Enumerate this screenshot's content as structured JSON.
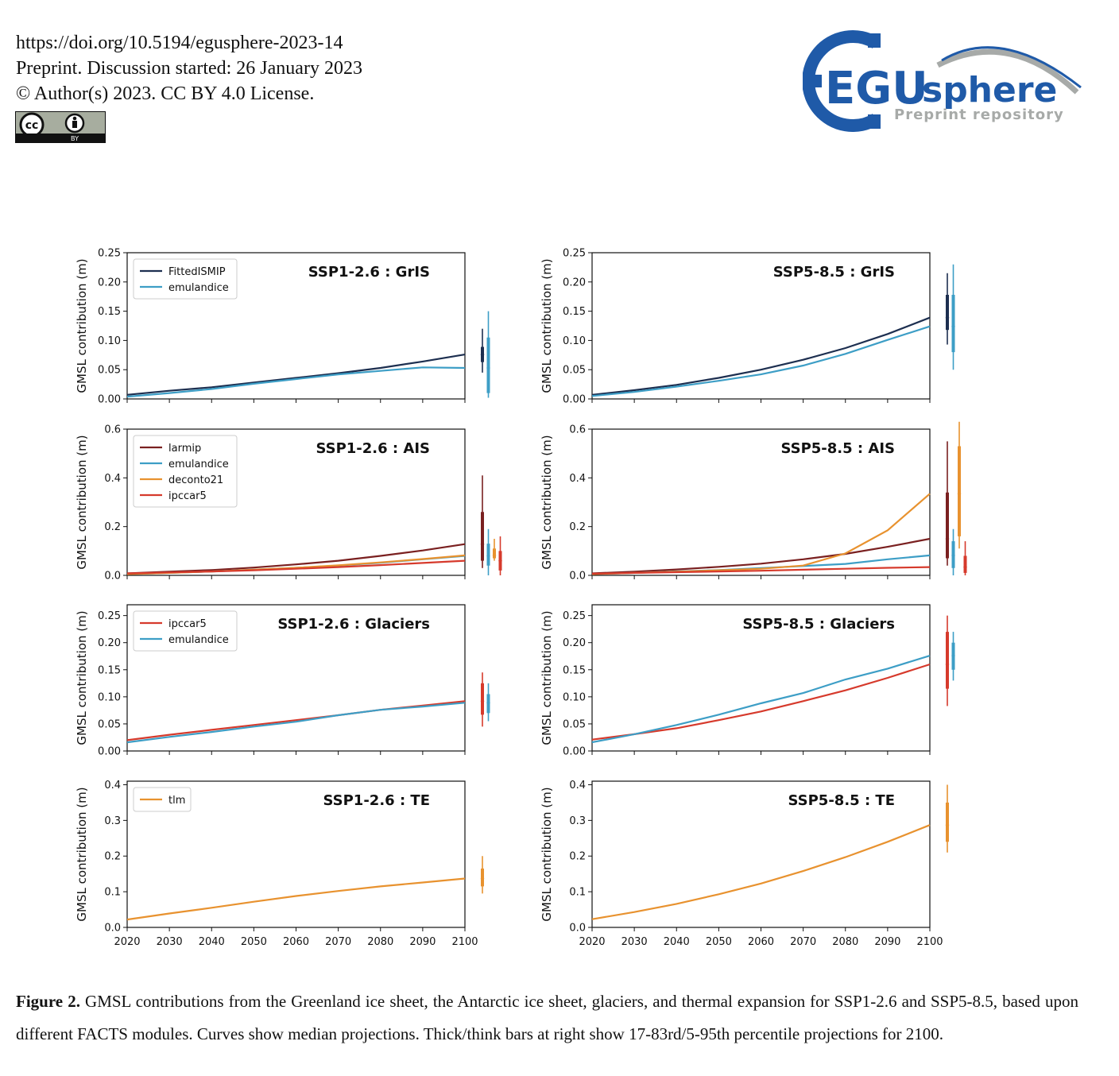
{
  "header": {
    "doi": "https://doi.org/10.5194/egusphere-2023-14",
    "preprint": "Preprint. Discussion started: 26 January 2023",
    "license": "© Author(s) 2023. CC BY 4.0 License.",
    "cc_badge": {
      "cc": "cc",
      "by": "BY"
    }
  },
  "logo": {
    "egu": "EGU",
    "sphere": "sphere",
    "sub": "Preprint repository",
    "colors": {
      "blue": "#1f5aa8",
      "gray": "#a7aaa8"
    }
  },
  "figure": {
    "ylabel": "GMSL contribution (m)",
    "x_ticks": [
      "2020",
      "2030",
      "2040",
      "2050",
      "2060",
      "2070",
      "2080",
      "2090",
      "2100"
    ]
  },
  "chart_data": [
    {
      "type": "line",
      "title": "SSP1-2.6 : GrIS",
      "ylim": [
        0,
        0.25
      ],
      "yticks": [
        "0.00",
        "0.05",
        "0.10",
        "0.15",
        "0.20",
        "0.25"
      ],
      "x": [
        2020,
        2030,
        2040,
        2050,
        2060,
        2070,
        2080,
        2090,
        2100
      ],
      "series": [
        {
          "name": "FittedISMIP",
          "color": "#1d2f50",
          "values": [
            0.007,
            0.014,
            0.02,
            0.028,
            0.036,
            0.044,
            0.053,
            0.064,
            0.076
          ],
          "p5": 0.045,
          "p17": 0.063,
          "p50": 0.076,
          "p83": 0.089,
          "p95": 0.12
        },
        {
          "name": "emulandice",
          "color": "#3d9ec6",
          "values": [
            0.004,
            0.01,
            0.017,
            0.026,
            0.034,
            0.042,
            0.048,
            0.054,
            0.053
          ],
          "p5": 0.002,
          "p17": 0.01,
          "p50": 0.053,
          "p83": 0.105,
          "p95": 0.15
        }
      ]
    },
    {
      "type": "line",
      "title": "SSP5-8.5 : GrIS",
      "ylim": [
        0,
        0.25
      ],
      "yticks": [
        "0.00",
        "0.05",
        "0.10",
        "0.15",
        "0.20",
        "0.25"
      ],
      "x": [
        2020,
        2030,
        2040,
        2050,
        2060,
        2070,
        2080,
        2090,
        2100
      ],
      "series": [
        {
          "name": "",
          "color": "#1d2f50",
          "values": [
            0.007,
            0.015,
            0.024,
            0.036,
            0.05,
            0.067,
            0.087,
            0.111,
            0.139
          ],
          "p5": 0.093,
          "p17": 0.118,
          "p50": 0.139,
          "p83": 0.178,
          "p95": 0.215
        },
        {
          "name": "",
          "color": "#3d9ec6",
          "values": [
            0.005,
            0.012,
            0.021,
            0.031,
            0.042,
            0.057,
            0.077,
            0.101,
            0.124
          ],
          "p5": 0.05,
          "p17": 0.08,
          "p50": 0.124,
          "p83": 0.178,
          "p95": 0.23
        }
      ]
    },
    {
      "type": "line",
      "title": "SSP1-2.6 : AIS",
      "ylim": [
        0,
        0.6
      ],
      "yticks": [
        "0.0",
        "0.2",
        "0.4",
        "0.6"
      ],
      "x": [
        2020,
        2030,
        2040,
        2050,
        2060,
        2070,
        2080,
        2090,
        2100
      ],
      "series": [
        {
          "name": "larmip",
          "color": "#7a2020",
          "values": [
            0.008,
            0.015,
            0.022,
            0.032,
            0.045,
            0.06,
            0.08,
            0.102,
            0.128
          ],
          "p5": 0.03,
          "p17": 0.06,
          "p50": 0.128,
          "p83": 0.26,
          "p95": 0.41
        },
        {
          "name": "emulandice",
          "color": "#3d9ec6",
          "values": [
            0.005,
            0.01,
            0.016,
            0.023,
            0.031,
            0.04,
            0.052,
            0.066,
            0.08
          ],
          "p5": 0.0,
          "p17": 0.04,
          "p50": 0.08,
          "p83": 0.13,
          "p95": 0.19
        },
        {
          "name": "deconto21",
          "color": "#e8922f",
          "values": [
            0.005,
            0.01,
            0.016,
            0.023,
            0.031,
            0.041,
            0.053,
            0.067,
            0.082
          ],
          "p5": 0.06,
          "p17": 0.07,
          "p50": 0.082,
          "p83": 0.11,
          "p95": 0.15
        },
        {
          "name": "ipccar5",
          "color": "#d63a2c",
          "values": [
            0.008,
            0.012,
            0.016,
            0.021,
            0.027,
            0.034,
            0.042,
            0.051,
            0.06
          ],
          "p5": 0.0,
          "p17": 0.02,
          "p50": 0.06,
          "p83": 0.1,
          "p95": 0.16
        }
      ]
    },
    {
      "type": "line",
      "title": "SSP5-8.5 : AIS",
      "ylim": [
        0,
        0.6
      ],
      "yticks": [
        "0.0",
        "0.2",
        "0.4",
        "0.6"
      ],
      "x": [
        2020,
        2030,
        2040,
        2050,
        2060,
        2070,
        2080,
        2090,
        2100
      ],
      "series": [
        {
          "name": "",
          "color": "#7a2020",
          "values": [
            0.008,
            0.015,
            0.024,
            0.035,
            0.048,
            0.066,
            0.088,
            0.117,
            0.15
          ],
          "p5": 0.04,
          "p17": 0.07,
          "p50": 0.15,
          "p83": 0.34,
          "p95": 0.55
        },
        {
          "name": "",
          "color": "#3d9ec6",
          "values": [
            0.005,
            0.01,
            0.016,
            0.022,
            0.03,
            0.038,
            0.047,
            0.066,
            0.082
          ],
          "p5": 0.0,
          "p17": 0.03,
          "p50": 0.082,
          "p83": 0.14,
          "p95": 0.19
        },
        {
          "name": "",
          "color": "#e8922f",
          "values": [
            0.005,
            0.01,
            0.015,
            0.021,
            0.027,
            0.04,
            0.09,
            0.185,
            0.335
          ],
          "p5": 0.11,
          "p17": 0.16,
          "p50": 0.335,
          "p83": 0.53,
          "p95": 0.63
        },
        {
          "name": "",
          "color": "#d63a2c",
          "values": [
            0.007,
            0.01,
            0.013,
            0.016,
            0.019,
            0.023,
            0.027,
            0.031,
            0.034
          ],
          "p5": 0.0,
          "p17": 0.01,
          "p50": 0.034,
          "p83": 0.08,
          "p95": 0.14
        }
      ]
    },
    {
      "type": "line",
      "title": "SSP1-2.6 : Glaciers",
      "ylim": [
        0,
        0.27
      ],
      "yticks": [
        "0.00",
        "0.05",
        "0.10",
        "0.15",
        "0.20",
        "0.25"
      ],
      "x": [
        2020,
        2030,
        2040,
        2050,
        2060,
        2070,
        2080,
        2090,
        2100
      ],
      "series": [
        {
          "name": "ipccar5",
          "color": "#d63a2c",
          "values": [
            0.02,
            0.03,
            0.039,
            0.048,
            0.057,
            0.066,
            0.076,
            0.084,
            0.092
          ],
          "p5": 0.045,
          "p17": 0.067,
          "p50": 0.092,
          "p83": 0.125,
          "p95": 0.145
        },
        {
          "name": "emulandice",
          "color": "#3d9ec6",
          "values": [
            0.016,
            0.026,
            0.035,
            0.045,
            0.054,
            0.066,
            0.076,
            0.082,
            0.089
          ],
          "p5": 0.055,
          "p17": 0.07,
          "p50": 0.089,
          "p83": 0.105,
          "p95": 0.125
        }
      ]
    },
    {
      "type": "line",
      "title": "SSP5-8.5 : Glaciers",
      "ylim": [
        0,
        0.27
      ],
      "yticks": [
        "0.00",
        "0.05",
        "0.10",
        "0.15",
        "0.20",
        "0.25"
      ],
      "x": [
        2020,
        2030,
        2040,
        2050,
        2060,
        2070,
        2080,
        2090,
        2100
      ],
      "series": [
        {
          "name": "",
          "color": "#d63a2c",
          "values": [
            0.021,
            0.031,
            0.042,
            0.057,
            0.073,
            0.092,
            0.112,
            0.135,
            0.16
          ],
          "p5": 0.083,
          "p17": 0.115,
          "p50": 0.16,
          "p83": 0.22,
          "p95": 0.25
        },
        {
          "name": "",
          "color": "#3d9ec6",
          "values": [
            0.016,
            0.031,
            0.048,
            0.067,
            0.088,
            0.107,
            0.132,
            0.152,
            0.176
          ],
          "p5": 0.13,
          "p17": 0.15,
          "p50": 0.176,
          "p83": 0.2,
          "p95": 0.22
        }
      ]
    },
    {
      "type": "line",
      "title": "SSP1-2.6 : TE",
      "ylim": [
        0,
        0.41
      ],
      "yticks": [
        "0.0",
        "0.1",
        "0.2",
        "0.3",
        "0.4"
      ],
      "x": [
        2020,
        2030,
        2040,
        2050,
        2060,
        2070,
        2080,
        2090,
        2100
      ],
      "series": [
        {
          "name": "tlm",
          "color": "#e8922f",
          "values": [
            0.022,
            0.039,
            0.055,
            0.072,
            0.088,
            0.102,
            0.115,
            0.126,
            0.137
          ],
          "p5": 0.095,
          "p17": 0.115,
          "p50": 0.137,
          "p83": 0.165,
          "p95": 0.2
        }
      ]
    },
    {
      "type": "line",
      "title": "SSP5-8.5 : TE",
      "ylim": [
        0,
        0.41
      ],
      "yticks": [
        "0.0",
        "0.1",
        "0.2",
        "0.3",
        "0.4"
      ],
      "x": [
        2020,
        2030,
        2040,
        2050,
        2060,
        2070,
        2080,
        2090,
        2100
      ],
      "series": [
        {
          "name": "",
          "color": "#e8922f",
          "values": [
            0.023,
            0.043,
            0.066,
            0.093,
            0.123,
            0.158,
            0.197,
            0.24,
            0.287
          ],
          "p5": 0.21,
          "p17": 0.24,
          "p50": 0.287,
          "p83": 0.35,
          "p95": 0.4
        }
      ]
    }
  ],
  "caption": {
    "label": "Figure 2.",
    "text": " GMSL contributions from the Greenland ice sheet, the Antarctic ice sheet, glaciers, and thermal expansion for SSP1-2.6 and SSP5-8.5, based upon different FACTS modules. Curves show median projections. Thick/think bars at right show 17-83rd/5-95th percentile projections for 2100."
  }
}
